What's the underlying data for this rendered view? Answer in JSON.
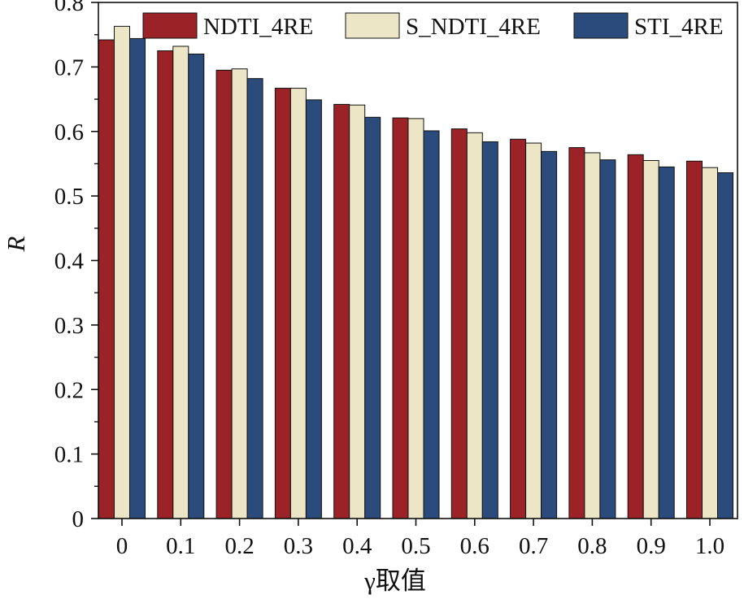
{
  "chart_data": {
    "type": "bar",
    "title": "",
    "xlabel": "γ取值",
    "ylabel": "R",
    "categories": [
      "0",
      "0.1",
      "0.2",
      "0.3",
      "0.4",
      "0.5",
      "0.6",
      "0.7",
      "0.8",
      "0.9",
      "1.0"
    ],
    "yticks": [
      "0",
      "0.1",
      "0.2",
      "0.3",
      "0.4",
      "0.5",
      "0.6",
      "0.7",
      "0.8"
    ],
    "ylim": [
      0,
      0.8
    ],
    "grid": false,
    "legend_position": "top",
    "series": [
      {
        "name": "NDTI_4RE",
        "color": "#9b2226",
        "values": [
          0.742,
          0.725,
          0.695,
          0.667,
          0.642,
          0.621,
          0.604,
          0.588,
          0.575,
          0.564,
          0.554
        ]
      },
      {
        "name": "S_NDTI_4RE",
        "color": "#ece6c6",
        "values": [
          0.763,
          0.732,
          0.697,
          0.667,
          0.641,
          0.62,
          0.598,
          0.582,
          0.567,
          0.555,
          0.544
        ]
      },
      {
        "name": "STI_4RE",
        "color": "#2b4b7c",
        "values": [
          0.744,
          0.72,
          0.682,
          0.649,
          0.622,
          0.601,
          0.584,
          0.569,
          0.556,
          0.545,
          0.536
        ]
      }
    ]
  }
}
